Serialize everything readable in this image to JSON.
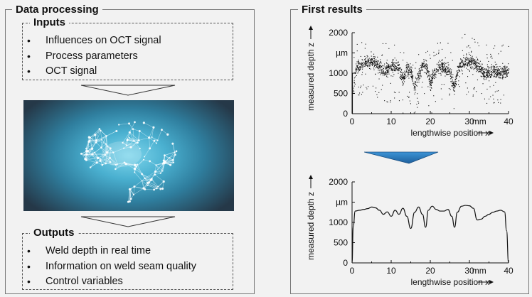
{
  "left_panel": {
    "title": "Data processing",
    "inputs": {
      "title": "Inputs",
      "items": [
        "Influences on OCT signal",
        "Process parameters",
        "OCT signal"
      ]
    },
    "outputs": {
      "title": "Outputs",
      "items": [
        "Weld depth in real time",
        "Information on weld seam quality",
        "Control variables"
      ]
    },
    "image_icon": "neural-network-brain"
  },
  "right_panel": {
    "title": "First results"
  },
  "colors": {
    "background": "#f2f2f2",
    "arrow_blue": "#2e7fc2",
    "image_center": "#5fc0dc",
    "image_edge": "#253848"
  },
  "chart_data": [
    {
      "type": "scatter",
      "xlabel": "lengthwise position x",
      "ylabel": "measured depth z",
      "x_unit": "mm",
      "y_unit": "µm",
      "xlim": [
        0,
        40
      ],
      "ylim": [
        0,
        2000
      ],
      "x_ticks": [
        "0",
        "10",
        "20",
        "30",
        "40"
      ],
      "y_ticks": [
        "0",
        "500",
        "1000",
        "1500",
        "2000"
      ],
      "profile_x": [
        0,
        0.5,
        1,
        2,
        3,
        4,
        5,
        6,
        7,
        8,
        9,
        10,
        11,
        12,
        13,
        14,
        15,
        16,
        17,
        18,
        19,
        20,
        21,
        22,
        23,
        24,
        25,
        26,
        27,
        28,
        29,
        30,
        31,
        32,
        33,
        34,
        35,
        36,
        37,
        38,
        39,
        40
      ],
      "profile_y": [
        0,
        900,
        1150,
        1200,
        1250,
        1300,
        1280,
        1250,
        1150,
        1050,
        1100,
        1150,
        1200,
        1100,
        850,
        1150,
        1050,
        700,
        950,
        1250,
        1150,
        750,
        1050,
        1150,
        1150,
        1100,
        1050,
        650,
        1100,
        1250,
        1300,
        1300,
        1280,
        1200,
        1050,
        1000,
        1050,
        1100,
        1050,
        1000,
        1050,
        1050
      ]
    },
    {
      "type": "line",
      "xlabel": "lengthwise position x",
      "ylabel": "measured depth z",
      "x_unit": "mm",
      "y_unit": "µm",
      "xlim": [
        0,
        40
      ],
      "ylim": [
        0,
        2000
      ],
      "x_ticks": [
        "0",
        "10",
        "20",
        "30",
        "40"
      ],
      "y_ticks": [
        "0",
        "500",
        "1000",
        "1500",
        "2000"
      ],
      "x": [
        0,
        0.3,
        0.8,
        2,
        3,
        4,
        5,
        6,
        7,
        8,
        9,
        10,
        11,
        12,
        13,
        14,
        15,
        16,
        17,
        18,
        18.8,
        19.5,
        20.5,
        21.5,
        22.5,
        23.5,
        24.5,
        25.5,
        26.2,
        26.9,
        28,
        29,
        30,
        31,
        32,
        33,
        34,
        35,
        36,
        37,
        38,
        39,
        39.5,
        40
      ],
      "y": [
        0,
        900,
        1280,
        1300,
        1320,
        1340,
        1380,
        1360,
        1300,
        1200,
        1260,
        1150,
        1300,
        1200,
        1350,
        1150,
        850,
        1250,
        1380,
        1200,
        880,
        1300,
        1400,
        1320,
        1280,
        1280,
        1320,
        1150,
        880,
        1250,
        1400,
        1420,
        1410,
        1350,
        1060,
        1080,
        1150,
        1200,
        1250,
        1280,
        1300,
        1260,
        800,
        0
      ]
    }
  ]
}
